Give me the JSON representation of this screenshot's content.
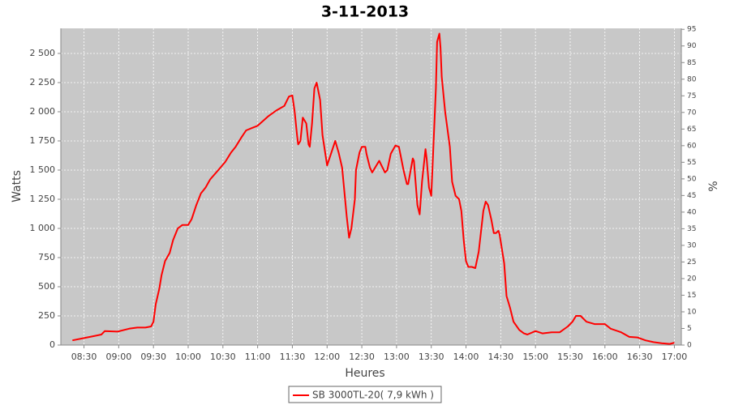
{
  "chart_data": {
    "type": "line",
    "title": "3-11-2013",
    "x_label": "Heures",
    "y_label": "Watts",
    "y2_label": "%",
    "x": [
      500,
      510,
      520,
      525,
      528,
      539,
      549,
      556,
      563,
      568,
      570,
      572,
      575,
      577,
      580,
      584,
      587,
      591,
      595,
      600,
      603,
      607,
      611,
      615,
      619,
      626,
      632,
      637,
      641,
      646,
      650,
      655,
      660,
      669,
      676,
      683,
      687,
      690,
      692,
      694,
      695,
      697,
      699,
      702,
      704,
      705,
      707,
      709,
      711,
      714,
      716,
      720,
      727,
      730,
      733,
      737,
      739,
      741,
      744,
      745,
      748,
      750,
      753,
      754,
      757,
      759,
      765,
      770,
      772,
      775,
      779,
      782,
      786,
      789,
      790,
      794,
      795,
      798,
      800,
      802,
      805,
      806,
      808,
      810,
      811,
      814,
      815,
      817,
      818,
      819,
      822,
      826,
      828,
      831,
      834,
      836,
      838,
      840,
      842,
      845,
      848,
      851,
      855,
      857,
      859,
      862,
      864,
      866,
      868,
      869,
      873,
      875,
      878,
      881,
      886,
      890,
      893,
      900,
      906,
      914,
      921,
      928,
      932,
      935,
      939,
      944,
      951,
      960,
      965,
      974,
      981,
      988,
      995,
      1002,
      1009,
      1016,
      1020
    ],
    "series": [
      {
        "name": "SB 3000TL-20( 7,9 kWh )",
        "color": "#ff0000",
        "values": [
          40,
          60,
          80,
          90,
          120,
          115,
          140,
          150,
          150,
          160,
          200,
          350,
          480,
          600,
          720,
          790,
          900,
          1000,
          1030,
          1030,
          1080,
          1200,
          1300,
          1350,
          1420,
          1500,
          1570,
          1650,
          1700,
          1780,
          1840,
          1860,
          1880,
          1960,
          2010,
          2050,
          2130,
          2140,
          2000,
          1800,
          1720,
          1750,
          1950,
          1900,
          1720,
          1700,
          1900,
          2200,
          2250,
          2100,
          1800,
          1540,
          1750,
          1650,
          1520,
          1100,
          920,
          1000,
          1250,
          1500,
          1650,
          1700,
          1700,
          1640,
          1520,
          1480,
          1580,
          1480,
          1500,
          1640,
          1710,
          1700,
          1500,
          1380,
          1380,
          1600,
          1580,
          1200,
          1120,
          1400,
          1680,
          1600,
          1350,
          1280,
          1500,
          2200,
          2600,
          2670,
          2550,
          2300,
          2000,
          1700,
          1400,
          1280,
          1250,
          1150,
          900,
          720,
          670,
          670,
          660,
          800,
          1150,
          1230,
          1200,
          1070,
          960,
          960,
          980,
          950,
          700,
          420,
          320,
          200,
          130,
          100,
          90,
          120,
          100,
          110,
          110,
          160,
          200,
          250,
          250,
          200,
          180,
          180,
          140,
          110,
          70,
          65,
          40,
          25,
          15,
          10,
          20
        ]
      }
    ],
    "xlim": [
      490,
      1026
    ],
    "xticks": [
      {
        "value": 510,
        "label": "08:30"
      },
      {
        "value": 540,
        "label": "09:00"
      },
      {
        "value": 570,
        "label": "09:30"
      },
      {
        "value": 600,
        "label": "10:00"
      },
      {
        "value": 630,
        "label": "10:30"
      },
      {
        "value": 660,
        "label": "11:00"
      },
      {
        "value": 690,
        "label": "11:30"
      },
      {
        "value": 720,
        "label": "12:00"
      },
      {
        "value": 750,
        "label": "12:30"
      },
      {
        "value": 780,
        "label": "13:00"
      },
      {
        "value": 810,
        "label": "13:30"
      },
      {
        "value": 840,
        "label": "14:00"
      },
      {
        "value": 870,
        "label": "14:30"
      },
      {
        "value": 900,
        "label": "15:00"
      },
      {
        "value": 930,
        "label": "15:30"
      },
      {
        "value": 960,
        "label": "16:00"
      },
      {
        "value": 990,
        "label": "16:30"
      },
      {
        "value": 1020,
        "label": "17:00"
      }
    ],
    "ylim": [
      0,
      2715
    ],
    "yticks": [
      0,
      250,
      500,
      750,
      {
        "value": 1000,
        "label": "1 000"
      },
      {
        "value": 1250,
        "label": "1 250"
      },
      {
        "value": 1500,
        "label": "1 500"
      },
      {
        "value": 1750,
        "label": "1 750"
      },
      {
        "value": 2000,
        "label": "2 000"
      },
      {
        "value": 2250,
        "label": "2 250"
      },
      {
        "value": 2500,
        "label": "2 500"
      }
    ],
    "y2lim": [
      0,
      95.3
    ],
    "y2ticks": [
      0,
      5,
      10,
      15,
      20,
      25,
      30,
      35,
      40,
      45,
      50,
      55,
      60,
      65,
      70,
      75,
      80,
      85,
      90,
      95
    ],
    "grid": true,
    "legend": "bottom"
  }
}
